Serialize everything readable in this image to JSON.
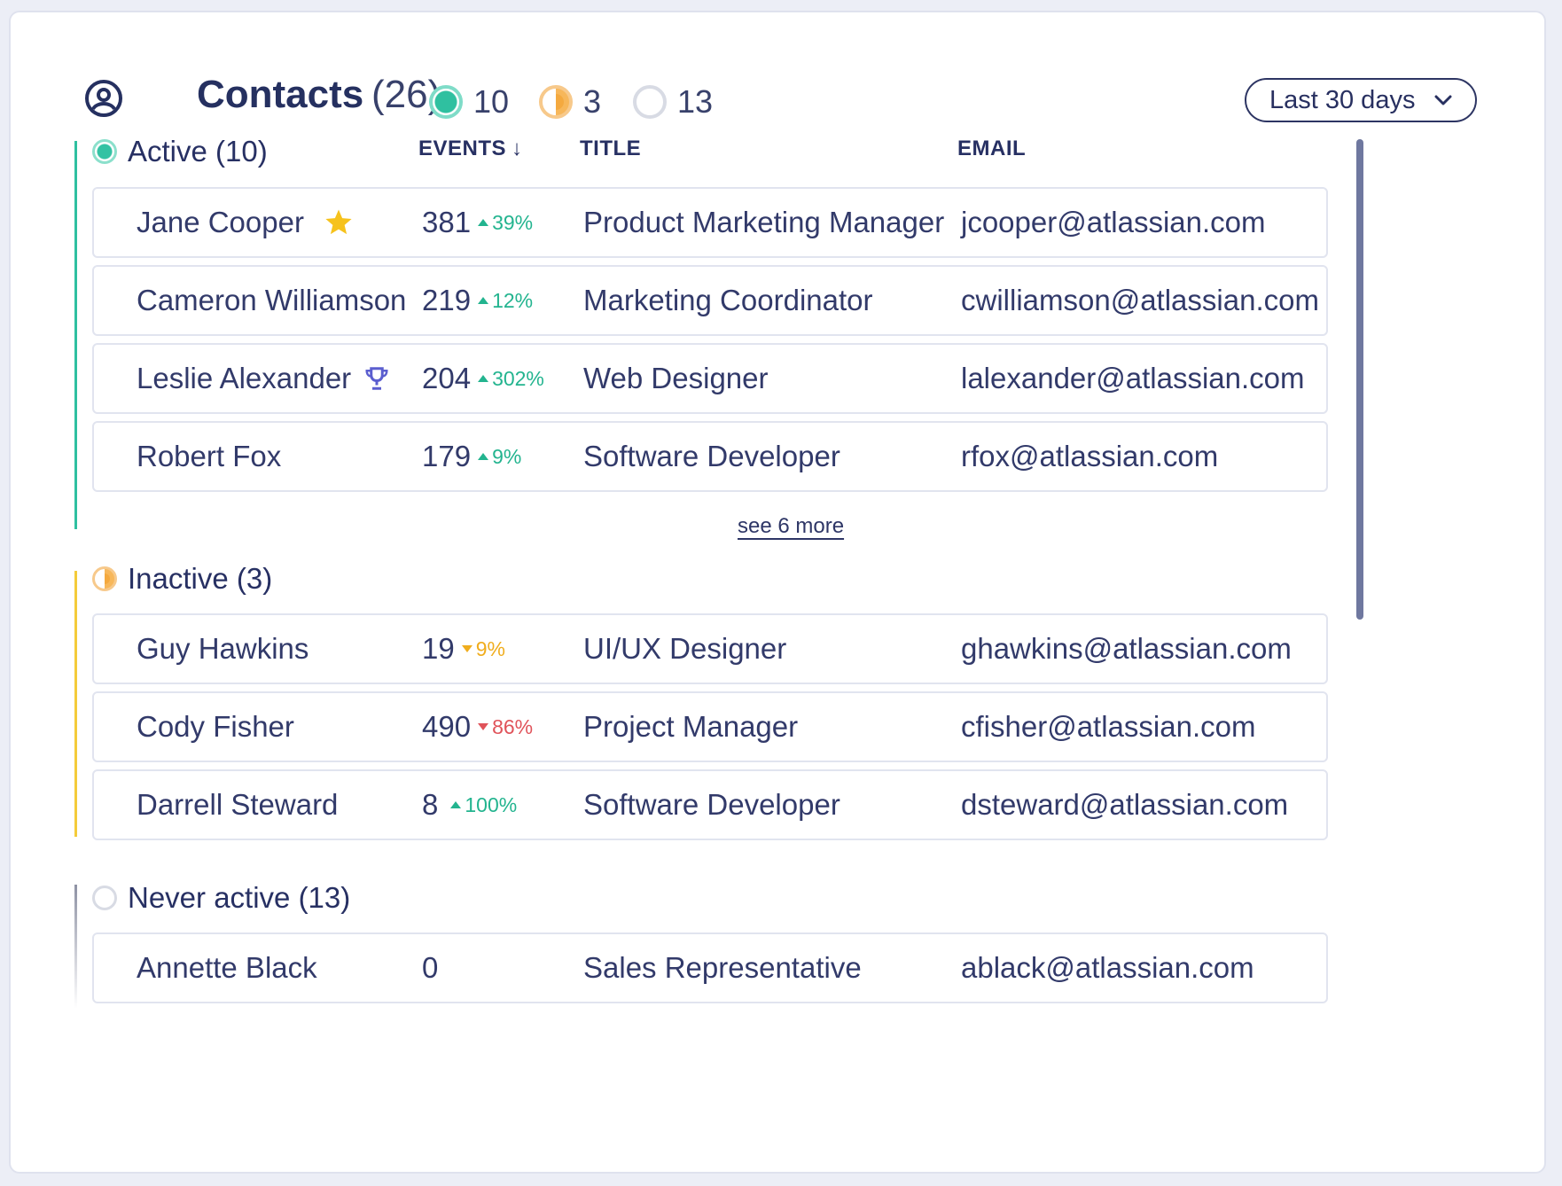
{
  "header": {
    "title": "Contacts",
    "total": "(26)",
    "stats": [
      {
        "status": "active",
        "count": "10"
      },
      {
        "status": "inactive",
        "count": "3"
      },
      {
        "status": "never",
        "count": "13"
      }
    ],
    "range_dropdown": "Last 30 days"
  },
  "columns": {
    "events": "EVENTS",
    "title": "TITLE",
    "email": "EMAIL"
  },
  "colors": {
    "active": "#2fc0a0",
    "inactive": "#f4b347",
    "never": "#b8bcc8",
    "trend_up": "#23b48f",
    "trend_up_yellow": "#f0ad1d",
    "trend_down": "#e0535a",
    "star": "#f6c21c",
    "trophy": "#5b5ecf"
  },
  "sections": {
    "active": {
      "label": "Active (10)",
      "see_more": "see 6 more",
      "rows": [
        {
          "name": "Jane Cooper",
          "badge": "star-icon",
          "events": "381",
          "trend": "39%",
          "dir": "up",
          "title": "Product Marketing Manager",
          "email": "jcooper@atlassian.com"
        },
        {
          "name": "Cameron Williamson",
          "badge": "",
          "events": "219",
          "trend": "12%",
          "dir": "up",
          "title": "Marketing Coordinator",
          "email": "cwilliamson@atlassian.com"
        },
        {
          "name": "Leslie Alexander",
          "badge": "trophy-icon",
          "events": "204",
          "trend": "302%",
          "dir": "up",
          "title": "Web Designer",
          "email": "lalexander@atlassian.com"
        },
        {
          "name": "Robert Fox",
          "badge": "",
          "events": "179",
          "trend": "9%",
          "dir": "up",
          "title": "Software Developer",
          "email": "rfox@atlassian.com"
        }
      ]
    },
    "inactive": {
      "label": "Inactive (3)",
      "rows": [
        {
          "name": "Guy Hawkins",
          "events": "19",
          "trend": "9%",
          "dir": "down",
          "title": "UI/UX Designer",
          "email": "ghawkins@atlassian.com"
        },
        {
          "name": "Cody Fisher",
          "events": "490",
          "trend": "86%",
          "dir": "down",
          "title": "Project Manager",
          "email": "cfisher@atlassian.com"
        },
        {
          "name": "Darrell Steward",
          "events": "8",
          "trend": "100%",
          "dir": "up",
          "title": "Software Developer",
          "email": "dsteward@atlassian.com"
        }
      ]
    },
    "never": {
      "label": "Never active (13)",
      "rows": [
        {
          "name": "Annette Black",
          "events": "0",
          "trend": "",
          "dir": "",
          "title": "Sales Representative",
          "email": "ablack@atlassian.com"
        }
      ]
    }
  }
}
